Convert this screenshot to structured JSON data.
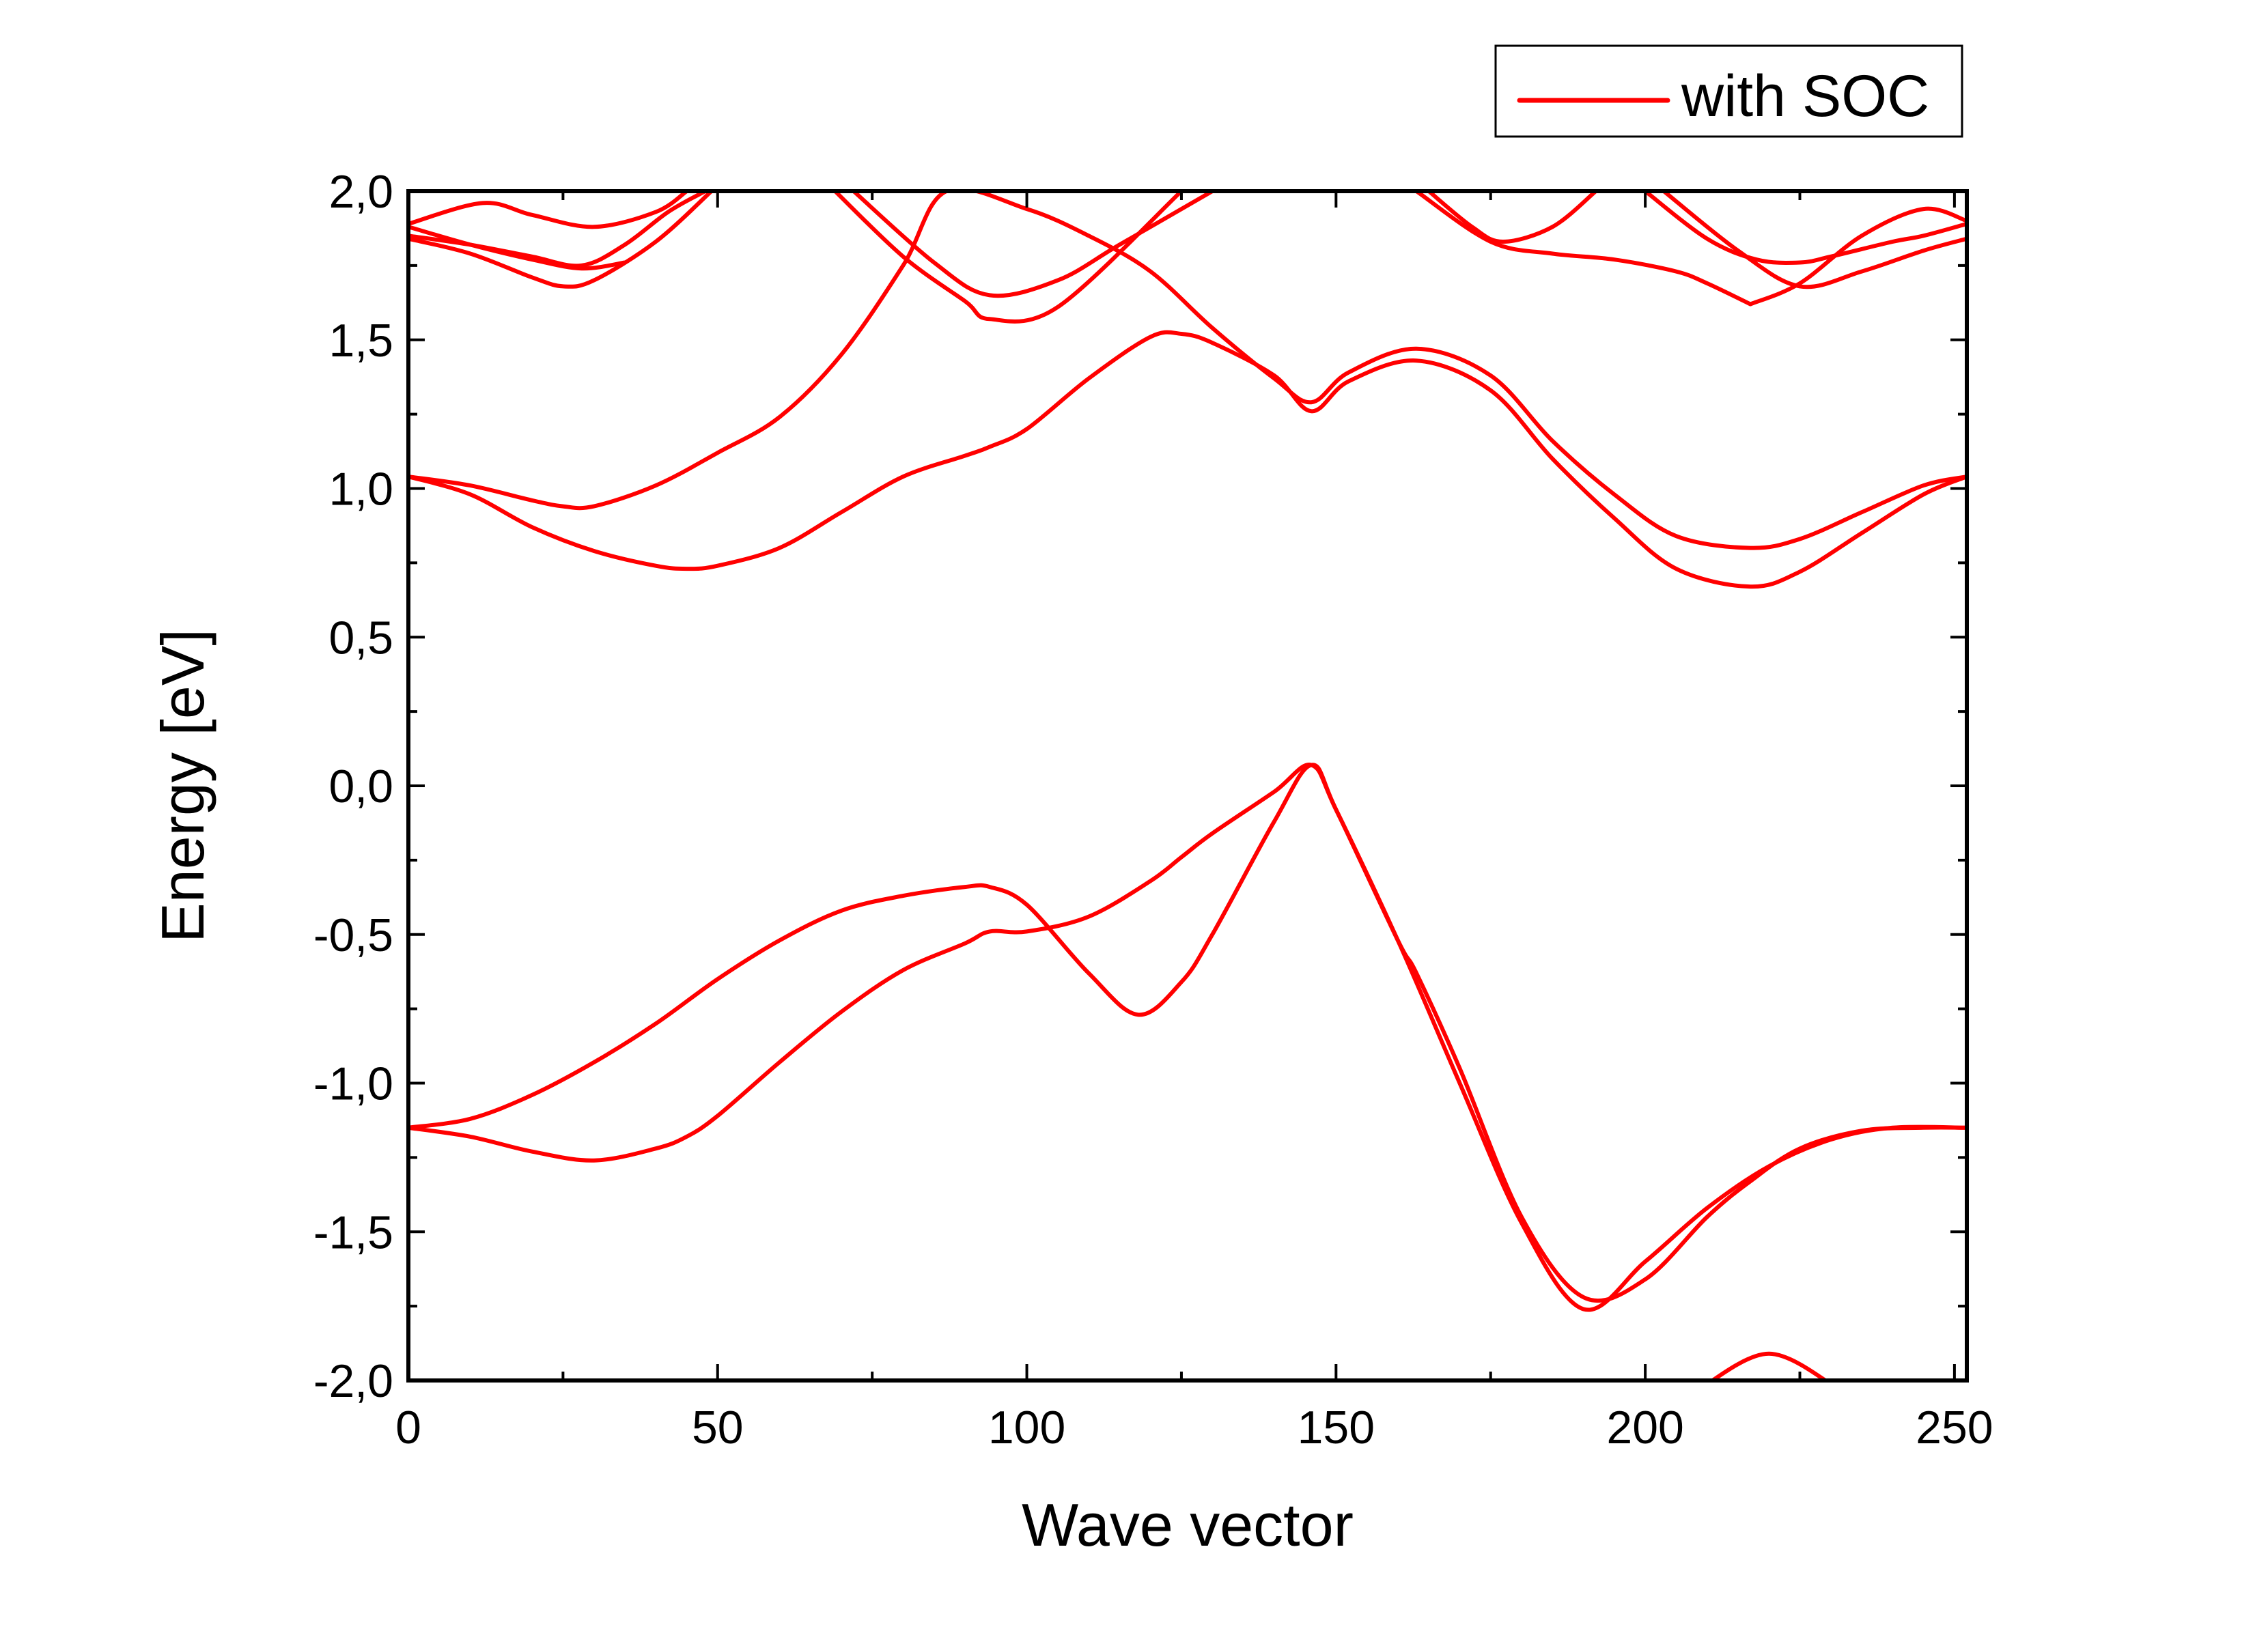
{
  "chart_data": {
    "type": "line",
    "title": "",
    "xlabel": "Wave vector",
    "ylabel": "Energy [eV]",
    "xlim": [
      0,
      252
    ],
    "ylim": [
      -2.0,
      2.0
    ],
    "x_ticks": [
      0,
      50,
      100,
      150,
      200,
      250
    ],
    "x_tick_labels": [
      "0",
      "50",
      "100",
      "150",
      "200",
      "250"
    ],
    "y_ticks": [
      -2.0,
      -1.5,
      -1.0,
      -0.5,
      0.0,
      0.5,
      1.0,
      1.5,
      2.0
    ],
    "y_tick_labels": [
      "-2,0",
      "-1,5",
      "-1,0",
      "-0,5",
      "0,0",
      "0,5",
      "1,0",
      "1,5",
      "2,0"
    ],
    "grid": false,
    "legend": {
      "placement": "top-right",
      "entries": [
        {
          "label": "with SOC",
          "color": "#ff0000"
        }
      ]
    },
    "line_color": "#ff0000",
    "series": [
      {
        "name": "with SOC",
        "x": [
          0,
          10,
          20,
          30,
          40,
          45,
          50,
          60,
          70,
          80,
          90,
          94,
          100,
          110,
          120,
          125,
          130,
          140,
          146,
          150,
          160,
          163,
          170,
          180,
          190,
          200,
          210,
          217,
          225,
          235,
          245,
          252
        ],
        "y": [
          -1.15,
          -1.18,
          -1.23,
          -1.26,
          -1.22,
          -1.18,
          -1.11,
          -0.93,
          -0.76,
          -0.62,
          -0.53,
          -0.49,
          -0.49,
          -0.44,
          -0.32,
          -0.24,
          -0.16,
          -0.02,
          0.07,
          -0.08,
          -0.52,
          -0.63,
          -0.95,
          -1.45,
          -1.72,
          -1.66,
          -1.45,
          -1.33,
          -1.22,
          -1.16,
          -1.15,
          -1.15
        ]
      },
      {
        "x": [
          0,
          10,
          20,
          30,
          40,
          50,
          60,
          70,
          80,
          90,
          94,
          100,
          110,
          118,
          125,
          130,
          140,
          146,
          150,
          160,
          170,
          180,
          190,
          200,
          210,
          220,
          230,
          240,
          252
        ],
        "y": [
          -1.15,
          -1.12,
          -1.04,
          -0.93,
          -0.8,
          -0.65,
          -0.52,
          -0.42,
          -0.37,
          -0.34,
          -0.34,
          -0.4,
          -0.63,
          -0.77,
          -0.66,
          -0.5,
          -0.12,
          0.07,
          -0.08,
          -0.52,
          -1.0,
          -1.47,
          -1.76,
          -1.6,
          -1.42,
          -1.28,
          -1.19,
          -1.15,
          -1.15
        ]
      },
      {
        "x": [
          0,
          10,
          20,
          30,
          40,
          45,
          50,
          60,
          70,
          80,
          90,
          94,
          100,
          110,
          120,
          125,
          130,
          140,
          146,
          152,
          163,
          175,
          185,
          195,
          205,
          217,
          225,
          235,
          245,
          252
        ],
        "y": [
          1.04,
          0.98,
          0.87,
          0.79,
          0.74,
          0.73,
          0.74,
          0.8,
          0.92,
          1.04,
          1.11,
          1.14,
          1.2,
          1.37,
          1.51,
          1.52,
          1.49,
          1.38,
          1.26,
          1.36,
          1.43,
          1.33,
          1.1,
          0.9,
          0.73,
          0.67,
          0.72,
          0.85,
          0.98,
          1.04
        ]
      },
      {
        "x": [
          0,
          10,
          20,
          25,
          30,
          40,
          50,
          60,
          70,
          80,
          87,
          100,
          110,
          120,
          130,
          140,
          146,
          152,
          163,
          175,
          185,
          195,
          205,
          217,
          225,
          235,
          245,
          252
        ],
        "y": [
          1.04,
          1.01,
          0.96,
          0.94,
          0.94,
          1.01,
          1.12,
          1.24,
          1.45,
          1.75,
          2.0,
          1.94,
          1.85,
          1.73,
          1.54,
          1.37,
          1.29,
          1.39,
          1.47,
          1.38,
          1.16,
          0.98,
          0.84,
          0.8,
          0.83,
          0.92,
          1.01,
          1.04
        ]
      },
      {
        "x": [
          0,
          10,
          20,
          25,
          30,
          40,
          49
        ],
        "y": [
          1.84,
          1.79,
          1.71,
          1.68,
          1.7,
          1.83,
          2.0
        ]
      },
      {
        "x": [
          0,
          10,
          20,
          28,
          35,
          42,
          48
        ],
        "y": [
          1.85,
          1.82,
          1.78,
          1.75,
          1.82,
          1.93,
          2.0
        ]
      },
      {
        "x": [
          0,
          12,
          20,
          30,
          40,
          45
        ],
        "y": [
          1.89,
          1.96,
          1.92,
          1.88,
          1.93,
          2.0
        ]
      },
      {
        "x": [
          0,
          10,
          20,
          28,
          35
        ],
        "y": [
          1.88,
          1.82,
          1.77,
          1.74,
          1.76
        ]
      },
      {
        "x": [
          69,
          80,
          90,
          94,
          105,
          125
        ],
        "y": [
          2.0,
          1.78,
          1.63,
          1.57,
          1.61,
          2.0
        ]
      },
      {
        "x": [
          72,
          85,
          94,
          105,
          115,
          130
        ],
        "y": [
          2.0,
          1.76,
          1.65,
          1.7,
          1.82,
          2.0
        ]
      },
      {
        "x": [
          163,
          175,
          185,
          195,
          205,
          210,
          217
        ],
        "y": [
          2.0,
          1.83,
          1.79,
          1.77,
          1.73,
          1.69,
          1.62
        ]
      },
      {
        "x": [
          165,
          172,
          177,
          185,
          192
        ],
        "y": [
          2.0,
          1.88,
          1.83,
          1.88,
          2.0
        ]
      },
      {
        "x": [
          200,
          210,
          218,
          225,
          230,
          240,
          245,
          252
        ],
        "y": [
          2.0,
          1.84,
          1.77,
          1.76,
          1.78,
          1.83,
          1.85,
          1.89
        ]
      },
      {
        "x": [
          203,
          215,
          225,
          235,
          245,
          252
        ],
        "y": [
          2.0,
          1.8,
          1.68,
          1.73,
          1.8,
          1.84
        ]
      },
      {
        "x": [
          217,
          225,
          235,
          245,
          252
        ],
        "y": [
          1.62,
          1.69,
          1.85,
          1.94,
          1.9
        ]
      },
      {
        "x": [
          208,
          220,
          232
        ],
        "y": [
          -2.04,
          -1.91,
          -2.04
        ]
      }
    ]
  }
}
